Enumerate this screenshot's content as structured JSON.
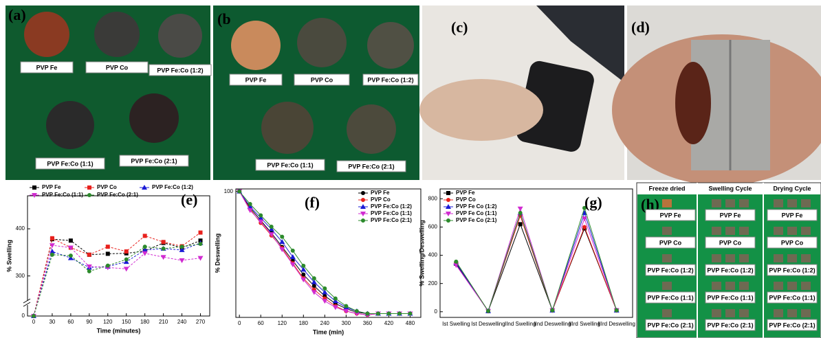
{
  "panels": [
    {
      "label": "(a)",
      "tags": [
        "PVP Fe",
        "PVP Co",
        "PVP Fe:Co (1:2)",
        "PVP Fe:Co (1:1)",
        "PVP Fe:Co (2:1)"
      ]
    },
    {
      "label": "(b",
      "tags": [
        "PVP Fe",
        "PVP Co",
        "PVP Fe:Co (1:2)",
        "PVP Fe:Co (1:1)",
        "PVP Fe:Co (2:1)"
      ]
    },
    {
      "label": "(c)"
    },
    {
      "label": "(d)"
    }
  ],
  "panel_h": {
    "label": "(h)",
    "columns": [
      "Freeze dried",
      "Swelling Cycle",
      "Drying Cycle"
    ],
    "tags": [
      "PVP Fe",
      "PVP Co",
      "PVP Fe:Co (1:2)",
      "PVP Fe:Co (1:1)",
      "PVP Fe:Co (2:1)"
    ]
  },
  "chart_data": [
    {
      "type": "line",
      "panel_label": "(e)",
      "xlabel": "Time (minutes)",
      "ylabel": "% Swelling",
      "x": [
        0,
        30,
        60,
        90,
        120,
        150,
        180,
        210,
        240,
        270
      ],
      "xlim": [
        -10,
        285
      ],
      "xticks": [
        0,
        30,
        60,
        90,
        120,
        150,
        180,
        210,
        240,
        270
      ],
      "ylim": [
        0,
        470
      ],
      "yticks": [
        0,
        300,
        400
      ],
      "y_break": [
        20,
        250
      ],
      "legend": "top",
      "series": [
        {
          "name": "PVP Fe",
          "color": "#000000",
          "marker": "square",
          "values": [
            0,
            378,
            375,
            345,
            347,
            348,
            353,
            370,
            360,
            375
          ]
        },
        {
          "name": "PVP Co",
          "color": "#e8211d",
          "marker": "square",
          "values": [
            0,
            380,
            360,
            345,
            362,
            352,
            385,
            372,
            363,
            392
          ]
        },
        {
          "name": "PVP Fe:Co (1:2)",
          "color": "#1a1ad6",
          "marker": "triangle",
          "values": [
            0,
            352,
            338,
            318,
            320,
            330,
            355,
            358,
            355,
            370
          ]
        },
        {
          "name": "PVP Fe:Co (1:1)",
          "color": "#d12bd1",
          "marker": "triangle-down",
          "values": [
            0,
            365,
            360,
            320,
            318,
            315,
            348,
            340,
            333,
            338
          ]
        },
        {
          "name": "PVP Fe:Co (2:1)",
          "color": "#2c8a2c",
          "marker": "circle",
          "values": [
            0,
            345,
            343,
            310,
            322,
            335,
            362,
            358,
            362,
            368
          ]
        }
      ]
    },
    {
      "type": "line",
      "panel_label": "(f)",
      "xlabel": "Time (min)",
      "ylabel": "% Deswelling",
      "x": [
        0,
        30,
        60,
        90,
        120,
        150,
        180,
        210,
        240,
        270,
        300,
        330,
        360,
        390,
        420,
        450,
        480
      ],
      "xlim": [
        -10,
        510
      ],
      "xticks": [
        0,
        60,
        120,
        180,
        240,
        300,
        360,
        420,
        480
      ],
      "ylim": [
        0,
        102
      ],
      "yticks": [
        100
      ],
      "legend": "upper right",
      "series": [
        {
          "name": "PVP Fe",
          "color": "#000000",
          "marker": "circle",
          "values": [
            100,
            87,
            77,
            67,
            56,
            45,
            34,
            25,
            17,
            11,
            7,
            4,
            3,
            3,
            3,
            3,
            3
          ]
        },
        {
          "name": "PVP Co",
          "color": "#e8211d",
          "marker": "circle",
          "values": [
            100,
            86,
            75,
            65,
            55,
            43,
            31,
            22,
            15,
            9,
            5,
            3,
            2,
            3,
            3,
            3,
            3
          ]
        },
        {
          "name": "PVP Fe:Co (1:2)",
          "color": "#1a1ad6",
          "marker": "triangle",
          "values": [
            100,
            88,
            79,
            70,
            60,
            48,
            38,
            28,
            20,
            13,
            8,
            5,
            3,
            3,
            3,
            3,
            3
          ]
        },
        {
          "name": "PVP Fe:Co (1:1)",
          "color": "#d12bd1",
          "marker": "triangle-down",
          "values": [
            100,
            85,
            76,
            66,
            54,
            42,
            30,
            20,
            13,
            8,
            5,
            3,
            2,
            3,
            3,
            3,
            3
          ]
        },
        {
          "name": "PVP Fe:Co (2:1)",
          "color": "#2c8a2c",
          "marker": "circle",
          "values": [
            100,
            90,
            81,
            72,
            64,
            53,
            41,
            31,
            23,
            15,
            9,
            5,
            3,
            3,
            3,
            3,
            3
          ]
        }
      ]
    },
    {
      "type": "line",
      "panel_label": "(g)",
      "ylabel": "% Swelling/Deswelling",
      "categories": [
        "Ist Swelling",
        "Ist Deswelling",
        "IInd Swelling",
        "IInd Deswelling",
        "IIIrd Swelling",
        "IIIrd Deswelling"
      ],
      "ylim": [
        -40,
        870
      ],
      "yticks": [
        0,
        200,
        400,
        600,
        800
      ],
      "legend": "upper left",
      "series": [
        {
          "name": "PVP Fe",
          "color": "#000000",
          "marker": "square",
          "values": [
            340,
            5,
            620,
            10,
            590,
            10
          ]
        },
        {
          "name": "PVP Co",
          "color": "#e8211d",
          "marker": "circle",
          "values": [
            350,
            5,
            680,
            10,
            600,
            10
          ]
        },
        {
          "name": "PVP Fe Co (1:2)",
          "color": "#1a1ad6",
          "marker": "triangle",
          "values": [
            345,
            5,
            700,
            10,
            700,
            10
          ]
        },
        {
          "name": "PVP Fe Co (1:1)",
          "color": "#d12bd1",
          "marker": "triangle-down",
          "values": [
            330,
            5,
            730,
            10,
            660,
            10
          ]
        },
        {
          "name": "PVP Fe Co (2:1)",
          "color": "#2c8a2c",
          "marker": "circle",
          "values": [
            355,
            5,
            700,
            10,
            735,
            10
          ]
        }
      ]
    }
  ]
}
